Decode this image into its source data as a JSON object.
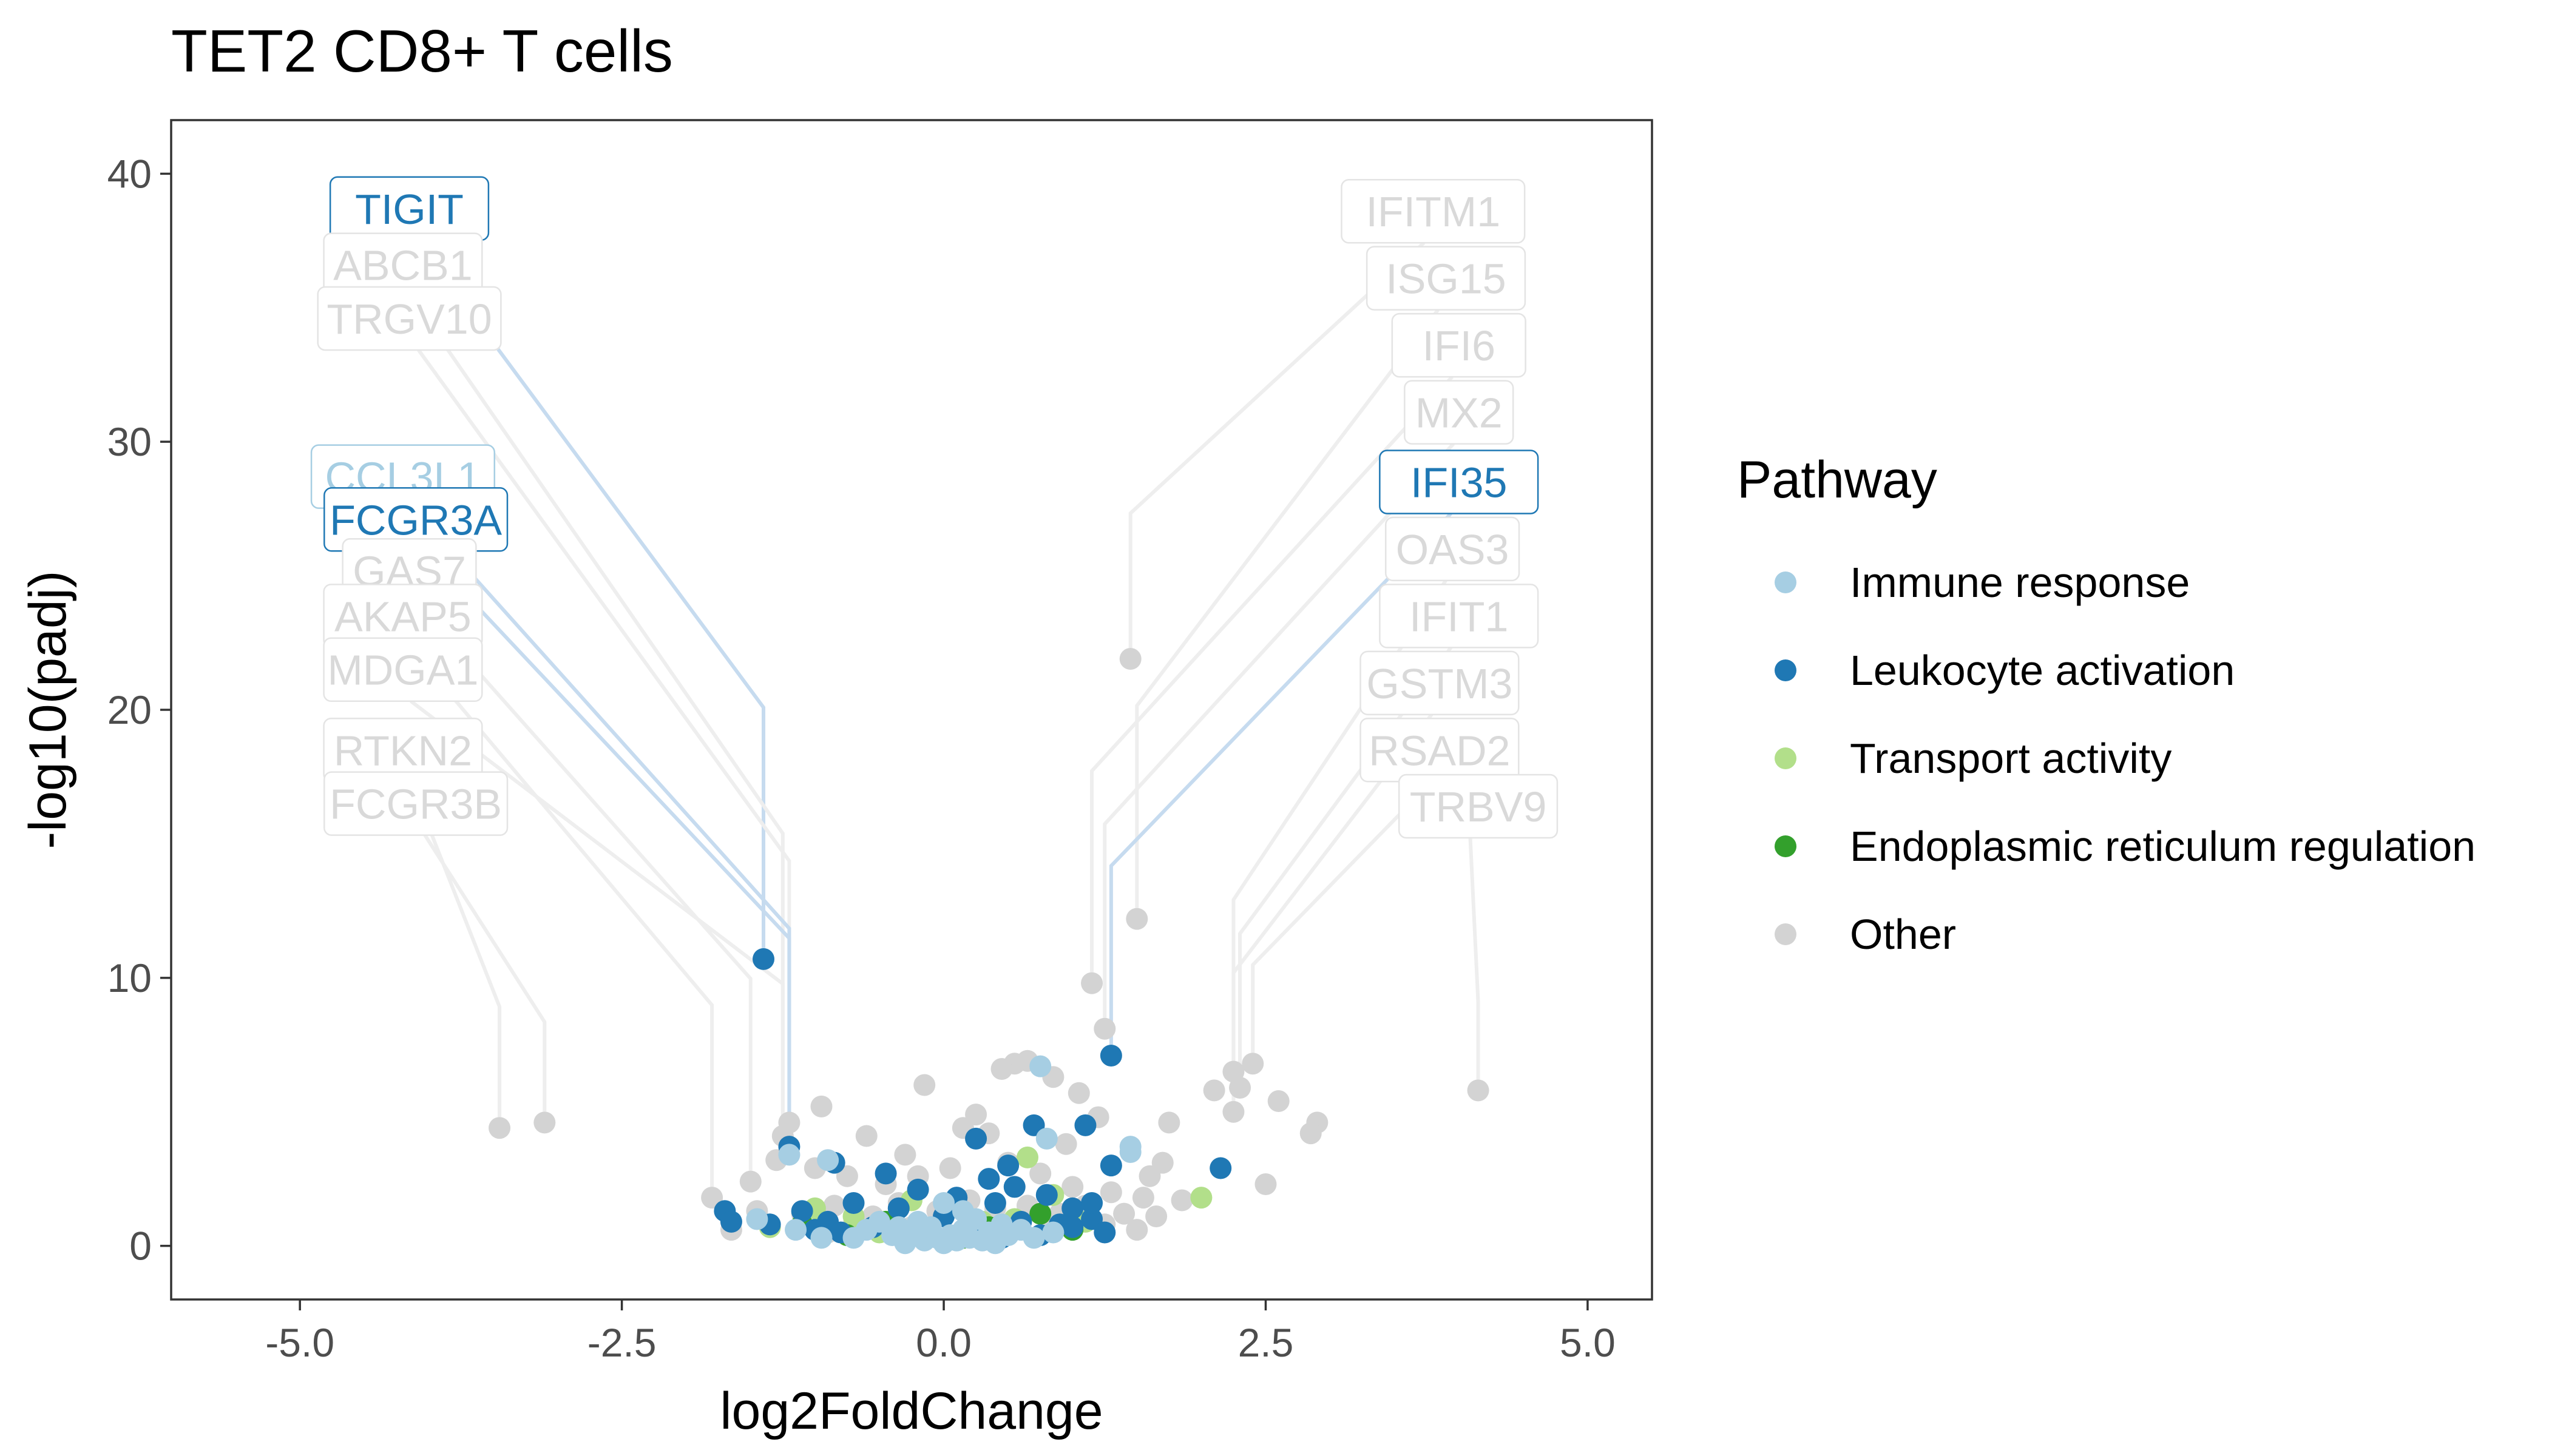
{
  "chart_data": {
    "type": "scatter",
    "title": "TET2 CD8+ T cells",
    "xlabel": "log2FoldChange",
    "ylabel": "-log10(padj)",
    "xlim": [
      -6.0,
      5.5
    ],
    "ylim": [
      -2.0,
      42.0
    ],
    "x_ticks": [
      -5.0,
      -2.5,
      0.0,
      2.5,
      5.0
    ],
    "x_tick_labels": [
      "-5.0",
      "-2.5",
      "0.0",
      "2.5",
      "5.0"
    ],
    "y_ticks": [
      0,
      10,
      20,
      30,
      40
    ],
    "y_tick_labels": [
      "0",
      "10",
      "20",
      "30",
      "40"
    ],
    "grid": false,
    "legend": {
      "title": "Pathway",
      "position": "right",
      "entries": [
        {
          "label": "Immune response",
          "color": "#a6cee3"
        },
        {
          "label": "Leukocyte activation",
          "color": "#1f78b4"
        },
        {
          "label": "Transport activity",
          "color": "#b2df8a"
        },
        {
          "label": "Endoplasmic reticulum regulation",
          "color": "#33a02c"
        },
        {
          "label": "Other",
          "color": "#d3d3d3"
        }
      ]
    },
    "colors": {
      "Immune response": "#a6cee3",
      "Leukocyte activation": "#1f78b4",
      "Transport activity": "#b2df8a",
      "Endoplasmic reticulum regulation": "#33a02c",
      "Other": "#d3d3d3"
    },
    "series": [
      {
        "name": "Other",
        "points": [
          [
            -3.45,
            4.4
          ],
          [
            -3.1,
            4.6
          ],
          [
            1.45,
            21.9
          ],
          [
            1.5,
            12.2
          ],
          [
            1.15,
            9.8
          ],
          [
            1.25,
            8.1
          ],
          [
            4.15,
            5.8
          ],
          [
            2.4,
            6.8
          ],
          [
            2.25,
            6.5
          ],
          [
            2.1,
            5.8
          ],
          [
            2.3,
            5.9
          ],
          [
            2.6,
            5.4
          ],
          [
            2.9,
            4.6
          ],
          [
            2.85,
            4.2
          ],
          [
            2.25,
            5.0
          ],
          [
            2.5,
            2.3
          ],
          [
            -1.8,
            1.8
          ],
          [
            -1.5,
            2.4
          ],
          [
            -1.2,
            4.6
          ],
          [
            -1.25,
            4.1
          ],
          [
            -0.95,
            5.2
          ],
          [
            -0.15,
            6.0
          ],
          [
            0.25,
            4.9
          ],
          [
            0.55,
            6.8
          ],
          [
            0.65,
            6.9
          ],
          [
            0.85,
            6.3
          ],
          [
            1.05,
            5.7
          ],
          [
            1.2,
            4.8
          ],
          [
            1.75,
            4.6
          ],
          [
            0.45,
            6.6
          ],
          [
            -0.6,
            4.1
          ],
          [
            -0.3,
            3.4
          ],
          [
            0.15,
            4.4
          ],
          [
            0.35,
            4.2
          ],
          [
            0.95,
            3.8
          ],
          [
            1.6,
            2.6
          ],
          [
            1.7,
            3.1
          ],
          [
            1.85,
            1.7
          ],
          [
            -1.3,
            3.2
          ],
          [
            -1.0,
            2.9
          ],
          [
            -0.75,
            2.6
          ],
          [
            -0.45,
            2.3
          ],
          [
            -0.2,
            2.6
          ],
          [
            0.05,
            2.9
          ],
          [
            0.5,
            3.1
          ],
          [
            0.75,
            2.7
          ],
          [
            1.0,
            2.2
          ],
          [
            1.3,
            2.0
          ],
          [
            1.55,
            1.8
          ],
          [
            -1.45,
            1.3
          ],
          [
            -1.1,
            1.2
          ],
          [
            -0.85,
            1.5
          ],
          [
            -0.55,
            1.1
          ],
          [
            -0.35,
            1.6
          ],
          [
            -0.05,
            1.3
          ],
          [
            0.2,
            1.7
          ],
          [
            0.4,
            1.4
          ],
          [
            0.65,
            1.5
          ],
          [
            0.9,
            1.2
          ],
          [
            1.1,
            1.5
          ],
          [
            1.4,
            1.2
          ],
          [
            1.65,
            1.1
          ],
          [
            -0.7,
            0.8
          ],
          [
            -0.25,
            0.7
          ],
          [
            0.25,
            0.8
          ],
          [
            0.55,
            0.6
          ],
          [
            0.85,
            0.7
          ],
          [
            1.25,
            0.8
          ],
          [
            -1.65,
            0.6
          ],
          [
            -0.9,
            0.5
          ],
          [
            1.5,
            0.6
          ],
          [
            0.1,
            0.4
          ]
        ]
      },
      {
        "name": "Transport activity",
        "points": [
          [
            2.0,
            1.8
          ],
          [
            -0.7,
            1.1
          ],
          [
            0.55,
            1.0
          ],
          [
            -0.25,
            1.7
          ],
          [
            0.3,
            0.9
          ],
          [
            -1.0,
            1.4
          ],
          [
            0.85,
            1.9
          ],
          [
            -1.35,
            0.7
          ],
          [
            -0.5,
            0.5
          ],
          [
            0.65,
            3.3
          ],
          [
            0.4,
            0.4
          ],
          [
            1.1,
            0.9
          ]
        ]
      },
      {
        "name": "Endoplasmic reticulum regulation",
        "points": [
          [
            -1.1,
            0.8
          ],
          [
            -0.45,
            0.9
          ],
          [
            -0.1,
            0.5
          ],
          [
            0.35,
            0.7
          ],
          [
            0.75,
            1.2
          ],
          [
            -0.75,
            0.4
          ],
          [
            1.0,
            0.6
          ],
          [
            0.15,
            0.3
          ]
        ]
      },
      {
        "name": "Leukocyte activation",
        "points": [
          [
            -1.4,
            10.7
          ],
          [
            1.3,
            7.1
          ],
          [
            -1.2,
            3.7
          ],
          [
            -0.85,
            3.1
          ],
          [
            -0.45,
            2.7
          ],
          [
            -0.2,
            2.1
          ],
          [
            0.1,
            1.8
          ],
          [
            0.35,
            2.5
          ],
          [
            0.5,
            3.0
          ],
          [
            0.7,
            4.5
          ],
          [
            1.1,
            4.5
          ],
          [
            1.3,
            3.0
          ],
          [
            2.15,
            2.9
          ],
          [
            0.25,
            4.0
          ],
          [
            0.55,
            2.2
          ],
          [
            0.8,
            1.9
          ],
          [
            1.0,
            1.4
          ],
          [
            1.15,
            1.0
          ],
          [
            -1.7,
            1.3
          ],
          [
            -1.65,
            0.9
          ],
          [
            -1.35,
            0.8
          ],
          [
            -1.1,
            1.3
          ],
          [
            -0.9,
            0.9
          ],
          [
            -0.7,
            1.6
          ],
          [
            -0.55,
            0.7
          ],
          [
            -0.35,
            1.4
          ],
          [
            -0.15,
            0.6
          ],
          [
            0.0,
            1.1
          ],
          [
            0.2,
            0.5
          ],
          [
            0.4,
            1.6
          ],
          [
            0.6,
            0.9
          ],
          [
            0.9,
            0.8
          ],
          [
            1.15,
            1.6
          ],
          [
            1.25,
            0.5
          ],
          [
            -0.8,
            0.5
          ],
          [
            -0.3,
            0.4
          ],
          [
            0.45,
            0.3
          ],
          [
            0.75,
            0.4
          ],
          [
            1.0,
            0.7
          ],
          [
            -1.0,
            0.6
          ]
        ]
      },
      {
        "name": "Immune response",
        "points": [
          [
            -1.2,
            3.4
          ],
          [
            0.75,
            6.7
          ],
          [
            0.8,
            4.0
          ],
          [
            1.45,
            3.7
          ],
          [
            1.45,
            3.5
          ],
          [
            -0.9,
            3.2
          ],
          [
            -1.45,
            1.0
          ],
          [
            -0.6,
            0.6
          ],
          [
            -0.4,
            0.4
          ],
          [
            -0.25,
            0.5
          ],
          [
            -0.15,
            0.2
          ],
          [
            -0.05,
            0.3
          ],
          [
            0.0,
            0.1
          ],
          [
            0.05,
            0.4
          ],
          [
            0.1,
            0.2
          ],
          [
            0.15,
            0.6
          ],
          [
            0.2,
            0.3
          ],
          [
            0.25,
            1.0
          ],
          [
            0.3,
            0.2
          ],
          [
            0.35,
            0.5
          ],
          [
            -0.5,
            0.9
          ],
          [
            -0.35,
            0.7
          ],
          [
            -0.2,
            0.9
          ],
          [
            0.45,
            0.8
          ],
          [
            0.5,
            0.4
          ],
          [
            0.6,
            0.6
          ],
          [
            0.7,
            0.3
          ],
          [
            -0.7,
            0.3
          ],
          [
            -0.1,
            0.7
          ],
          [
            0.0,
            1.6
          ],
          [
            -1.15,
            0.6
          ],
          [
            -0.95,
            0.3
          ],
          [
            0.85,
            0.5
          ],
          [
            0.4,
            0.1
          ],
          [
            -0.3,
            0.1
          ],
          [
            0.15,
            1.3
          ]
        ]
      }
    ],
    "labels": [
      {
        "gene": "TIGIT",
        "group": "Leukocyte activation",
        "point": [
          -1.4,
          10.7
        ],
        "label_pos": [
          -4.15,
          38.7
        ],
        "side": "left"
      },
      {
        "gene": "ABCB1",
        "group": "Other",
        "point": [
          -1.25,
          4.6
        ],
        "label_pos": [
          -4.2,
          36.6
        ],
        "side": "left"
      },
      {
        "gene": "TRGV10",
        "group": "Other",
        "point": [
          -1.2,
          4.1
        ],
        "label_pos": [
          -4.15,
          34.6
        ],
        "side": "left"
      },
      {
        "gene": "CCL3L1",
        "group": "Immune response",
        "point": [
          -1.2,
          3.4
        ],
        "label_pos": [
          -4.2,
          28.7
        ],
        "side": "left"
      },
      {
        "gene": "FCGR3A",
        "group": "Leukocyte activation",
        "point": [
          -1.2,
          3.7
        ],
        "label_pos": [
          -4.1,
          27.1
        ],
        "side": "left"
      },
      {
        "gene": "GAS7",
        "group": "Other",
        "point": [
          -1.5,
          2.4
        ],
        "label_pos": [
          -4.15,
          25.2
        ],
        "side": "left"
      },
      {
        "gene": "AKAP5",
        "group": "Other",
        "point": [
          -1.8,
          1.8
        ],
        "label_pos": [
          -4.2,
          23.5
        ],
        "side": "left"
      },
      {
        "gene": "MDGA1",
        "group": "Other",
        "point": [
          -1.25,
          4.1
        ],
        "label_pos": [
          -4.2,
          21.5
        ],
        "side": "left"
      },
      {
        "gene": "RTKN2",
        "group": "Other",
        "point": [
          -3.45,
          4.4
        ],
        "label_pos": [
          -4.2,
          18.5
        ],
        "side": "left"
      },
      {
        "gene": "FCGR3B",
        "group": "Other",
        "point": [
          -3.1,
          4.6
        ],
        "label_pos": [
          -4.1,
          16.5
        ],
        "side": "left"
      },
      {
        "gene": "IFITM1",
        "group": "Other",
        "point": [
          1.45,
          21.9
        ],
        "label_pos": [
          3.8,
          38.6
        ],
        "side": "right"
      },
      {
        "gene": "ISG15",
        "group": "Other",
        "point": [
          1.5,
          12.2
        ],
        "label_pos": [
          3.9,
          36.1
        ],
        "side": "right"
      },
      {
        "gene": "IFI6",
        "group": "Other",
        "point": [
          1.15,
          9.8
        ],
        "label_pos": [
          4.0,
          33.6
        ],
        "side": "right"
      },
      {
        "gene": "MX2",
        "group": "Other",
        "point": [
          1.25,
          8.1
        ],
        "label_pos": [
          4.0,
          31.1
        ],
        "side": "right"
      },
      {
        "gene": "IFI35",
        "group": "Leukocyte activation",
        "point": [
          1.3,
          7.1
        ],
        "label_pos": [
          4.0,
          28.5
        ],
        "side": "right"
      },
      {
        "gene": "OAS3",
        "group": "Other",
        "point": [
          2.25,
          6.5
        ],
        "label_pos": [
          3.95,
          26.0
        ],
        "side": "right"
      },
      {
        "gene": "IFIT1",
        "group": "Other",
        "point": [
          2.3,
          5.9
        ],
        "label_pos": [
          4.0,
          23.5
        ],
        "side": "right"
      },
      {
        "gene": "GSTM3",
        "group": "Other",
        "point": [
          2.25,
          5.0
        ],
        "label_pos": [
          3.85,
          21.0
        ],
        "side": "right"
      },
      {
        "gene": "RSAD2",
        "group": "Other",
        "point": [
          2.4,
          6.8
        ],
        "label_pos": [
          3.85,
          18.5
        ],
        "side": "right"
      },
      {
        "gene": "TRBV9",
        "group": "Other",
        "point": [
          4.15,
          5.8
        ],
        "label_pos": [
          4.15,
          16.4
        ],
        "side": "right"
      }
    ]
  }
}
